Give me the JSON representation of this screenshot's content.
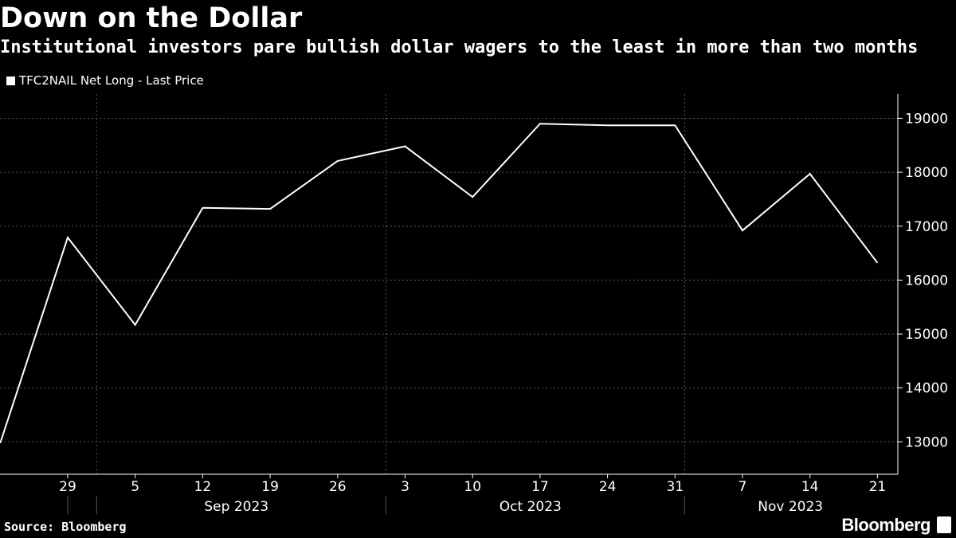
{
  "header": {
    "title": "Down on the Dollar",
    "subtitle": "Institutional investors pare bullish dollar wagers to the least in more than two months"
  },
  "footer": {
    "source": "Source: Bloomberg",
    "brand": "Bloomberg"
  },
  "colors": {
    "background": "#000000",
    "line": "#ffffff",
    "grid": "#5a5a5a"
  },
  "chart_data": {
    "type": "line",
    "legend": {
      "position": "top-left",
      "entries": [
        "TFC2NAIL Net Long - Last Price"
      ]
    },
    "x_tick_labels": [
      "29",
      "5",
      "12",
      "19",
      "26",
      "3",
      "10",
      "17",
      "24",
      "31",
      "7",
      "14",
      "21"
    ],
    "x_group_labels": [
      "Sep 2023",
      "Oct 2023",
      "Nov 2023"
    ],
    "y_ticks": [
      13000,
      14000,
      15000,
      16000,
      17000,
      18000,
      19000
    ],
    "ylim": [
      12400,
      19450
    ],
    "grid": true,
    "series": [
      {
        "name": "TFC2NAIL Net Long - Last Price",
        "x": [
          "2023-08-22",
          "2023-08-29",
          "2023-09-05",
          "2023-09-12",
          "2023-09-19",
          "2023-09-26",
          "2023-10-03",
          "2023-10-10",
          "2023-10-17",
          "2023-10-24",
          "2023-10-31",
          "2023-11-07",
          "2023-11-14",
          "2023-11-21"
        ],
        "values": [
          12980,
          16790,
          15170,
          17340,
          17320,
          18210,
          18480,
          17540,
          18900,
          18870,
          18870,
          16920,
          17970,
          16320
        ]
      }
    ]
  }
}
